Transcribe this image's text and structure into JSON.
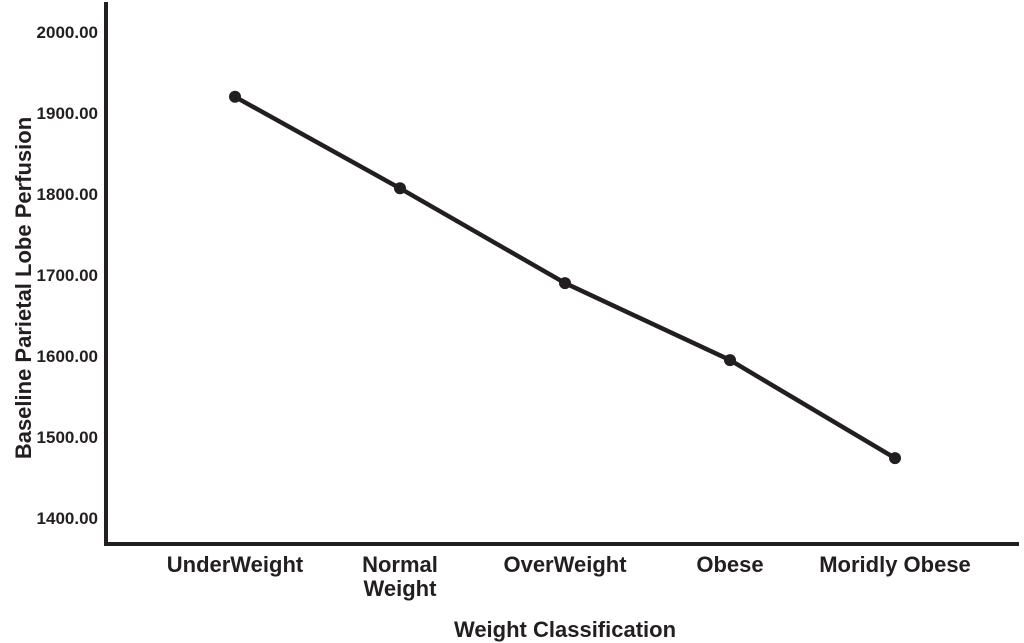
{
  "chart_data": {
    "type": "line",
    "categories": [
      "UnderWeight",
      "Normal\nWeight",
      "OverWeight",
      "Obese",
      "Moridly Obese"
    ],
    "series": [
      {
        "name": "Baseline Parietal Lobe Perfusion",
        "values": [
          1920,
          1807,
          1690,
          1595,
          1474
        ]
      }
    ],
    "title": "",
    "xlabel": "Weight Classification",
    "ylabel": "Baseline Parietal Lobe Perfusion",
    "ylim": [
      1400,
      2000
    ],
    "y_tick_labels": [
      "2000.00",
      "1900.00",
      "1800.00",
      "1700.00",
      "1600.00",
      "1500.00",
      "1400.00"
    ],
    "grid": false,
    "legend_position": "none",
    "marker": "circle",
    "colors": {
      "line": "#231f20",
      "marker": "#231f20",
      "axis": "#231f20",
      "text": "#231f20",
      "background": "#ffffff"
    }
  }
}
